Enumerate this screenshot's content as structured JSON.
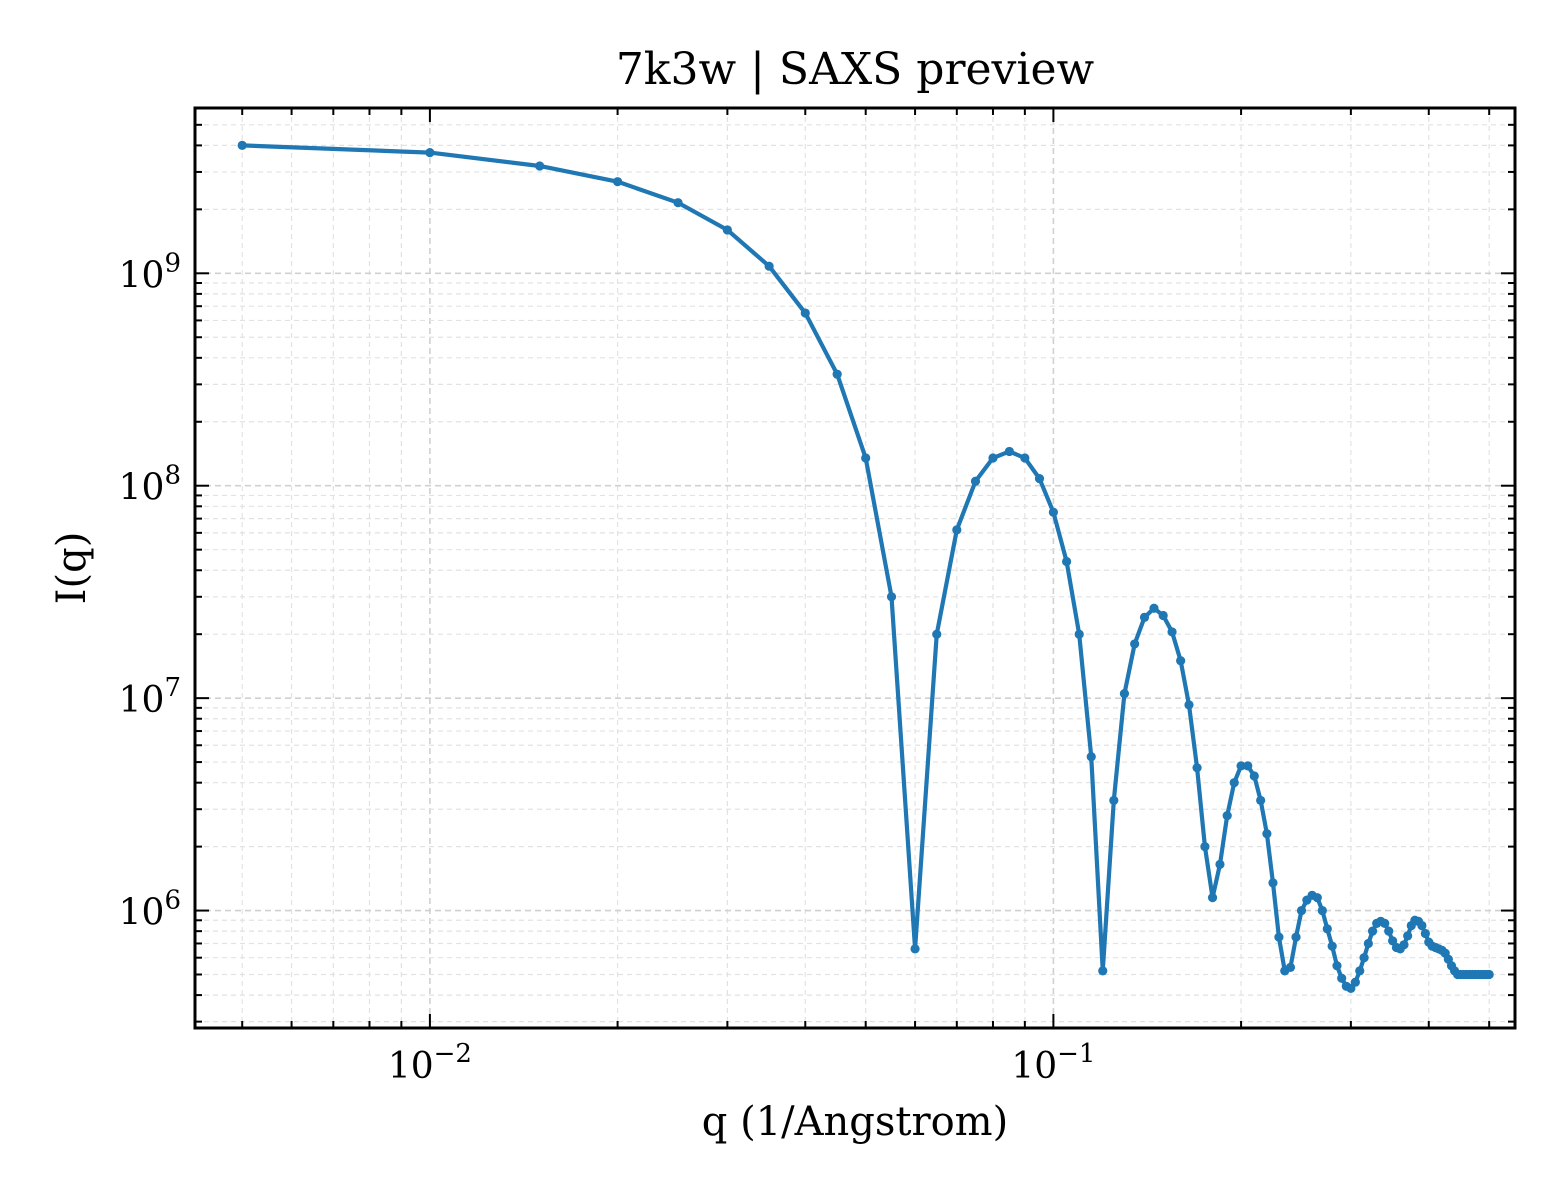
{
  "chart_data": {
    "type": "line",
    "title": "7k3w | SAXS preview",
    "xlabel": "q (1/Angstrom)",
    "ylabel": "I(q)",
    "xscale": "log",
    "yscale": "log",
    "xlim": [
      0.0042,
      0.55
    ],
    "ylim": [
      280000,
      6000000000
    ],
    "xticks": [
      {
        "base": "10",
        "exp": "−2",
        "value": 0.01
      },
      {
        "base": "10",
        "exp": "−1",
        "value": 0.1
      }
    ],
    "yticks": [
      {
        "base": "10",
        "exp": "6",
        "value": 1000000
      },
      {
        "base": "10",
        "exp": "7",
        "value": 10000000
      },
      {
        "base": "10",
        "exp": "8",
        "value": 100000000
      },
      {
        "base": "10",
        "exp": "9",
        "value": 1000000000
      }
    ],
    "grid": true,
    "color": "#1f77b4",
    "markers": true,
    "series": [
      {
        "x": [
          0.005,
          0.01,
          0.015,
          0.02,
          0.025,
          0.03,
          0.035,
          0.04,
          0.045,
          0.05,
          0.055,
          0.06,
          0.065,
          0.07,
          0.075,
          0.08,
          0.085,
          0.09,
          0.095,
          0.1,
          0.105,
          0.11,
          0.115,
          0.12,
          0.125,
          0.13,
          0.135,
          0.14,
          0.145,
          0.15,
          0.155,
          0.16,
          0.165,
          0.17,
          0.175,
          0.18,
          0.185,
          0.19,
          0.195,
          0.2,
          0.205,
          0.21,
          0.215,
          0.22,
          0.225,
          0.23,
          0.235,
          0.24,
          0.245,
          0.25,
          0.255,
          0.26,
          0.265,
          0.27,
          0.275,
          0.28,
          0.285,
          0.29,
          0.295,
          0.3,
          0.305,
          0.31,
          0.315,
          0.32,
          0.325,
          0.33,
          0.335,
          0.34,
          0.345,
          0.35,
          0.355,
          0.36,
          0.365,
          0.37,
          0.375,
          0.38,
          0.385,
          0.39,
          0.395,
          0.4,
          0.405,
          0.41,
          0.415,
          0.42,
          0.425,
          0.43,
          0.435,
          0.44,
          0.445,
          0.45,
          0.455,
          0.46,
          0.465,
          0.47,
          0.475,
          0.48,
          0.485,
          0.49,
          0.495,
          0.5
        ],
        "y": [
          4000000000,
          3700000000,
          3200000000,
          2700000000,
          2150000000,
          1600000000,
          1080000000,
          650000000,
          335000000,
          135000000,
          30000000,
          660000,
          20000000,
          62000000,
          105000000,
          135000000,
          145000000,
          135000000,
          108000000,
          75000000,
          44000000,
          20000000,
          5300000,
          520000,
          3300000,
          10500000,
          18000000,
          24000000,
          26500000,
          24500000,
          20500000,
          15000000,
          9300000,
          4700000,
          2000000,
          1150000,
          1650000,
          2800000,
          4000000,
          4800000,
          4800000,
          4300000,
          3300000,
          2300000,
          1350000,
          750000,
          520000,
          540000,
          750000,
          1000000,
          1120000,
          1180000,
          1150000,
          1000000,
          820000,
          680000,
          550000,
          480000,
          440000,
          430000,
          460000,
          520000,
          600000,
          700000,
          800000,
          870000,
          890000,
          870000,
          800000,
          720000,
          670000,
          660000,
          690000,
          760000,
          850000,
          900000,
          890000,
          850000,
          780000,
          710000,
          680000,
          670000,
          660000,
          650000,
          630000,
          590000,
          550000,
          520000,
          500000,
          500000,
          500000,
          500000,
          500000,
          500000,
          500000,
          500000,
          500000,
          500000,
          500000,
          500000
        ]
      }
    ]
  }
}
